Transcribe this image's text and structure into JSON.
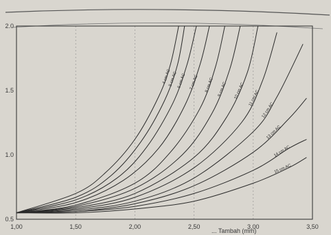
{
  "chart_data": {
    "type": "line",
    "title": "",
    "xlabel": "... Tambah (mm)",
    "ylabel": "",
    "xlim": [
      1.0,
      3.5
    ],
    "ylim": [
      0.5,
      2.0
    ],
    "x_ticks": [
      "1,00",
      "1,50",
      "2,00",
      "2,50",
      "3,00",
      "3,50"
    ],
    "y_ticks": [
      "0.5",
      "1.0",
      "1.5",
      "2.0"
    ],
    "grid": "vertical-dashed",
    "series": [
      {
        "name": "4 cm AC",
        "values": [
          [
            1.0,
            0.55
          ],
          [
            1.5,
            0.7
          ],
          [
            1.75,
            0.86
          ],
          [
            2.0,
            1.12
          ],
          [
            2.2,
            1.45
          ],
          [
            2.3,
            1.7
          ],
          [
            2.37,
            2.0
          ]
        ]
      },
      {
        "name": "5 cm AC",
        "values": [
          [
            1.0,
            0.55
          ],
          [
            1.5,
            0.67
          ],
          [
            1.8,
            0.84
          ],
          [
            2.05,
            1.1
          ],
          [
            2.25,
            1.42
          ],
          [
            2.36,
            1.7
          ],
          [
            2.42,
            2.0
          ]
        ]
      },
      {
        "name": "6 cm AC",
        "values": [
          [
            1.0,
            0.55
          ],
          [
            1.5,
            0.65
          ],
          [
            1.85,
            0.82
          ],
          [
            2.1,
            1.06
          ],
          [
            2.32,
            1.4
          ],
          [
            2.44,
            1.7
          ],
          [
            2.52,
            2.0
          ]
        ]
      },
      {
        "name": "7 cm AC",
        "values": [
          [
            1.0,
            0.55
          ],
          [
            1.5,
            0.63
          ],
          [
            1.9,
            0.8
          ],
          [
            2.2,
            1.05
          ],
          [
            2.42,
            1.38
          ],
          [
            2.55,
            1.7
          ],
          [
            2.63,
            2.0
          ]
        ]
      },
      {
        "name": "8 cm AC",
        "values": [
          [
            1.0,
            0.55
          ],
          [
            1.5,
            0.61
          ],
          [
            2.0,
            0.78
          ],
          [
            2.3,
            1.02
          ],
          [
            2.55,
            1.36
          ],
          [
            2.68,
            1.68
          ],
          [
            2.76,
            2.0
          ]
        ]
      },
      {
        "name": "9 cm AC",
        "values": [
          [
            1.0,
            0.55
          ],
          [
            1.5,
            0.6
          ],
          [
            2.0,
            0.74
          ],
          [
            2.4,
            1.0
          ],
          [
            2.65,
            1.32
          ],
          [
            2.8,
            1.66
          ],
          [
            2.89,
            2.0
          ]
        ]
      },
      {
        "name": "10 cm AC",
        "values": [
          [
            1.0,
            0.55
          ],
          [
            1.5,
            0.59
          ],
          [
            2.0,
            0.7
          ],
          [
            2.5,
            0.98
          ],
          [
            2.78,
            1.3
          ],
          [
            2.95,
            1.64
          ],
          [
            3.04,
            2.0
          ]
        ]
      },
      {
        "name": "11 cm AC",
        "values": [
          [
            1.0,
            0.55
          ],
          [
            1.5,
            0.58
          ],
          [
            2.0,
            0.67
          ],
          [
            2.5,
            0.9
          ],
          [
            2.9,
            1.25
          ],
          [
            3.08,
            1.58
          ],
          [
            3.2,
            1.95
          ]
        ]
      },
      {
        "name": "12 cm AC",
        "values": [
          [
            1.0,
            0.55
          ],
          [
            1.5,
            0.57
          ],
          [
            2.0,
            0.64
          ],
          [
            2.5,
            0.82
          ],
          [
            3.0,
            1.18
          ],
          [
            3.2,
            1.45
          ],
          [
            3.42,
            1.86
          ]
        ]
      },
      {
        "name": "13 cm AC",
        "values": [
          [
            1.0,
            0.55
          ],
          [
            1.5,
            0.56
          ],
          [
            2.0,
            0.62
          ],
          [
            2.5,
            0.76
          ],
          [
            3.0,
            1.02
          ],
          [
            3.3,
            1.28
          ],
          [
            3.45,
            1.44
          ]
        ]
      },
      {
        "name": "14 cm AC",
        "values": [
          [
            1.0,
            0.55
          ],
          [
            1.5,
            0.56
          ],
          [
            2.0,
            0.6
          ],
          [
            2.5,
            0.7
          ],
          [
            3.0,
            0.88
          ],
          [
            3.3,
            1.05
          ],
          [
            3.45,
            1.12
          ]
        ]
      },
      {
        "name": "15 cm AC",
        "values": [
          [
            1.0,
            0.55
          ],
          [
            1.5,
            0.55
          ],
          [
            2.0,
            0.58
          ],
          [
            2.5,
            0.64
          ],
          [
            3.0,
            0.78
          ],
          [
            3.3,
            0.9
          ],
          [
            3.45,
            0.98
          ]
        ]
      }
    ],
    "colors": {
      "line": "#2b2b2b",
      "frame": "#3a3a3a",
      "grid": "#8a8a8a",
      "background": "#d9d6cf"
    }
  }
}
